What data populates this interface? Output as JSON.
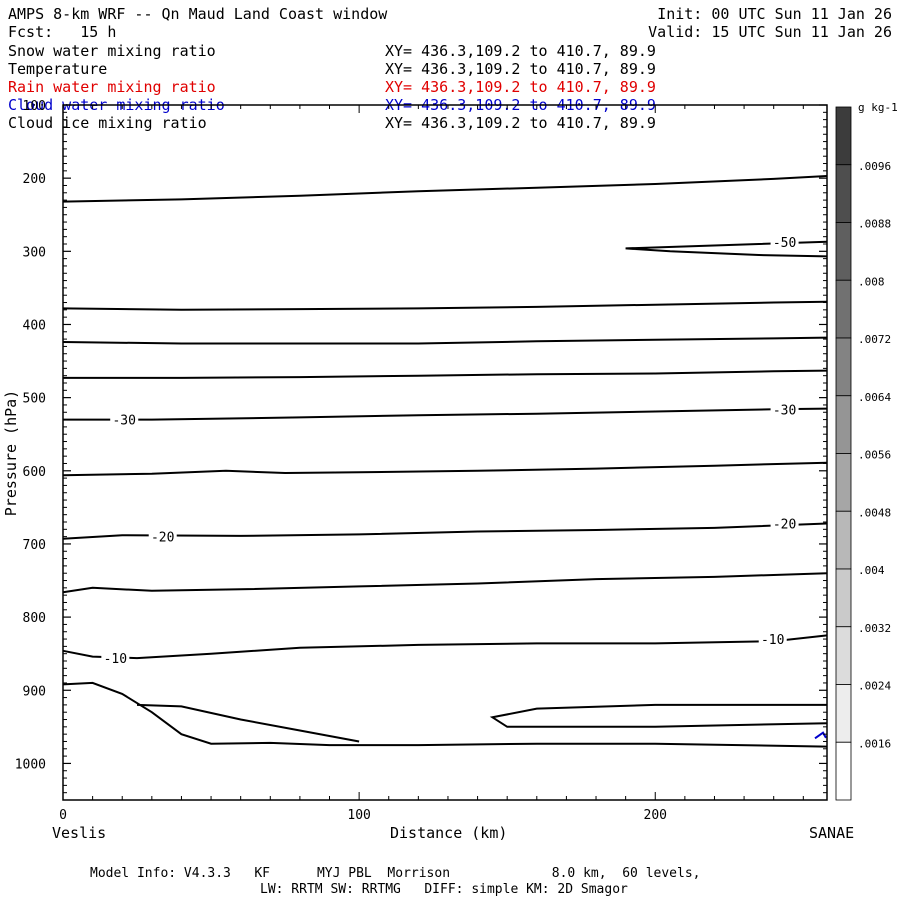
{
  "header": {
    "title": "AMPS 8-km WRF -- Qn Maud Land Coast window",
    "fcst": "Fcst:   15 h",
    "init": "Init: 00 UTC Sun 11 Jan 26",
    "valid": "Valid: 15 UTC Sun 11 Jan 26"
  },
  "fields": [
    {
      "name": "Snow water mixing ratio",
      "xy": "XY= 436.3,109.2 to 410.7, 89.9",
      "color": "#000000"
    },
    {
      "name": "Temperature",
      "xy": "XY= 436.3,109.2 to 410.7, 89.9",
      "color": "#000000"
    },
    {
      "name": "Rain water mixing ratio",
      "xy": "XY= 436.3,109.2 to 410.7, 89.9",
      "color": "#e00000"
    },
    {
      "name": "Cloud water mixing ratio",
      "xy": "XY= 436.3,109.2 to 410.7, 89.9",
      "color": "#0000cc"
    },
    {
      "name": "Cloud ice mixing ratio",
      "xy": "XY= 436.3,109.2 to 410.7, 89.9",
      "color": "#000000"
    }
  ],
  "footer": {
    "line1": "Model Info: V4.3.3   KF      MYJ PBL  Morrison             8.0 km,  60 levels,",
    "line2": "LW: RRTM SW: RRTMG   DIFF: simple KM: 2D Smagor"
  },
  "chart_data": {
    "type": "line",
    "xlabel": "Distance (km)",
    "ylabel": "Pressure (hPa)",
    "x_range": [
      0,
      258
    ],
    "y_range": [
      1050,
      100
    ],
    "x_ticks": [
      0,
      100,
      200
    ],
    "y_ticks": [
      100,
      200,
      300,
      400,
      500,
      600,
      700,
      800,
      900,
      1000
    ],
    "left_endpoint": "Veslis",
    "right_endpoint": "SANAE",
    "colorbar": {
      "unit": "g kg-1",
      "levels": [
        ".0096",
        ".0088",
        ".008",
        ".0072",
        ".0064",
        ".0056",
        ".0048",
        ".004",
        ".0032",
        ".0024",
        ".0016"
      ]
    },
    "temperature_contours": [
      {
        "points": [
          [
            0,
            232
          ],
          [
            40,
            229
          ],
          [
            80,
            224
          ],
          [
            120,
            218
          ],
          [
            160,
            213
          ],
          [
            200,
            208
          ],
          [
            240,
            201
          ],
          [
            258,
            197
          ]
        ]
      },
      {
        "label": "-50",
        "label_at": [
          243,
          287
        ],
        "points": [
          [
            258,
            287
          ],
          [
            235,
            290
          ],
          [
            190,
            296
          ],
          [
            205,
            300
          ],
          [
            235,
            305
          ],
          [
            258,
            307
          ]
        ]
      },
      {
        "points": [
          [
            0,
            378
          ],
          [
            40,
            380
          ],
          [
            80,
            379
          ],
          [
            120,
            378
          ],
          [
            160,
            376
          ],
          [
            200,
            373
          ],
          [
            240,
            370
          ],
          [
            258,
            369
          ]
        ]
      },
      {
        "points": [
          [
            0,
            424
          ],
          [
            40,
            426
          ],
          [
            80,
            426
          ],
          [
            120,
            426
          ],
          [
            160,
            423
          ],
          [
            200,
            421
          ],
          [
            240,
            419
          ],
          [
            258,
            418
          ]
        ]
      },
      {
        "points": [
          [
            0,
            473
          ],
          [
            40,
            473
          ],
          [
            80,
            472
          ],
          [
            120,
            470
          ],
          [
            160,
            468
          ],
          [
            200,
            467
          ],
          [
            240,
            464
          ],
          [
            258,
            463
          ]
        ]
      },
      {
        "label": "-30",
        "label_at": [
          20,
          530
        ],
        "label2": "-30",
        "label2_at": [
          243,
          516
        ],
        "points": [
          [
            0,
            530
          ],
          [
            30,
            530
          ],
          [
            80,
            527
          ],
          [
            120,
            524
          ],
          [
            160,
            522
          ],
          [
            200,
            519
          ],
          [
            240,
            516
          ],
          [
            258,
            515
          ]
        ]
      },
      {
        "points": [
          [
            0,
            606
          ],
          [
            30,
            604
          ],
          [
            55,
            600
          ],
          [
            75,
            603
          ],
          [
            100,
            602
          ],
          [
            140,
            600
          ],
          [
            180,
            597
          ],
          [
            220,
            593
          ],
          [
            258,
            589
          ]
        ]
      },
      {
        "label": "-20",
        "label_at": [
          33,
          690
        ],
        "label2": "-20",
        "label2_at": [
          243,
          672
        ],
        "points": [
          [
            0,
            693
          ],
          [
            20,
            688
          ],
          [
            60,
            689
          ],
          [
            100,
            687
          ],
          [
            140,
            683
          ],
          [
            180,
            681
          ],
          [
            220,
            678
          ],
          [
            258,
            672
          ]
        ]
      },
      {
        "points": [
          [
            0,
            766
          ],
          [
            10,
            760
          ],
          [
            30,
            764
          ],
          [
            60,
            762
          ],
          [
            100,
            758
          ],
          [
            140,
            754
          ],
          [
            180,
            748
          ],
          [
            220,
            745
          ],
          [
            258,
            740
          ]
        ]
      },
      {
        "label": "-10",
        "label_at": [
          17,
          856
        ],
        "label2": "-10",
        "label2_at": [
          239,
          830
        ],
        "points": [
          [
            0,
            846
          ],
          [
            10,
            854
          ],
          [
            25,
            856
          ],
          [
            50,
            850
          ],
          [
            80,
            842
          ],
          [
            120,
            838
          ],
          [
            160,
            836
          ],
          [
            200,
            836
          ],
          [
            240,
            833
          ],
          [
            258,
            825
          ]
        ]
      },
      {
        "points": [
          [
            0,
            892
          ],
          [
            10,
            890
          ],
          [
            20,
            905
          ],
          [
            30,
            930
          ],
          [
            40,
            960
          ],
          [
            50,
            973
          ],
          [
            70,
            972
          ],
          [
            90,
            975
          ],
          [
            120,
            975
          ],
          [
            160,
            973
          ],
          [
            200,
            973
          ],
          [
            258,
            977
          ]
        ]
      },
      {
        "points": [
          [
            25,
            920
          ],
          [
            40,
            922
          ],
          [
            60,
            940
          ],
          [
            80,
            955
          ],
          [
            100,
            970
          ]
        ]
      },
      {
        "points": [
          [
            258,
            920
          ],
          [
            200,
            920
          ],
          [
            160,
            925
          ],
          [
            145,
            937
          ],
          [
            150,
            950
          ],
          [
            200,
            950
          ],
          [
            258,
            945
          ]
        ]
      }
    ]
  }
}
